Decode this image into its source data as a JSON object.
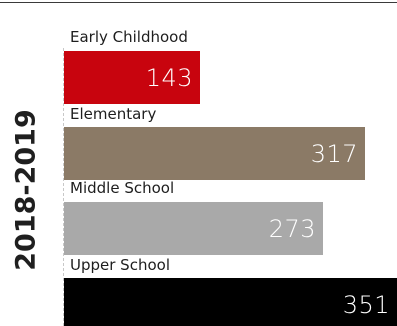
{
  "chart_data": {
    "type": "bar",
    "orientation": "horizontal",
    "group_label": "2018-2019",
    "categories": [
      "Early Childhood",
      "Elementary",
      "Middle School",
      "Upper School"
    ],
    "values": [
      143,
      317,
      273,
      351
    ],
    "value_labels": [
      "143",
      "317",
      "273",
      "351"
    ],
    "colors": [
      "#c8040e",
      "#8b7a66",
      "#a9a9a9",
      "#000000"
    ],
    "xlim": [
      0,
      351
    ],
    "grid": false,
    "legend": "none"
  }
}
